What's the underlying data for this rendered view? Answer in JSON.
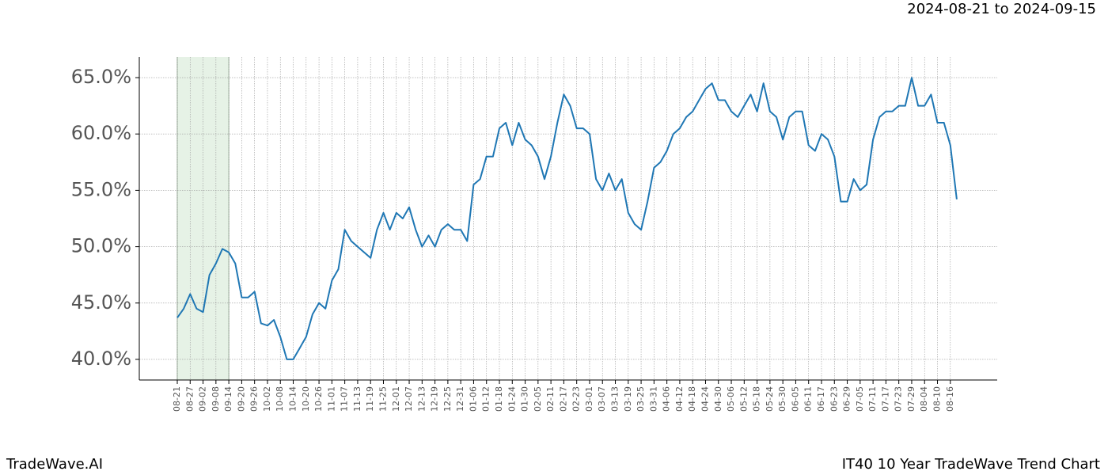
{
  "chart_data": {
    "type": "line",
    "title": "IT40 10 Year TradeWave Trend Chart",
    "subtitle": "2024-08-21 to 2024-09-15",
    "brand": "TradeWave.AI",
    "color": "#1f77b4",
    "highlight_color": "#e6f2e6",
    "highlight_range": [
      "08-21",
      "09-14"
    ],
    "grid": true,
    "x": [
      "08-21",
      "08-24",
      "08-27",
      "08-30",
      "09-02",
      "09-05",
      "09-08",
      "09-11",
      "09-14",
      "09-17",
      "09-20",
      "09-23",
      "09-26",
      "09-29",
      "10-02",
      "10-05",
      "10-08",
      "10-11",
      "10-14",
      "10-17",
      "10-20",
      "10-23",
      "10-26",
      "10-29",
      "11-01",
      "11-04",
      "11-07",
      "11-10",
      "11-13",
      "11-16",
      "11-19",
      "11-22",
      "11-25",
      "11-28",
      "12-01",
      "12-04",
      "12-07",
      "12-10",
      "12-13",
      "12-16",
      "12-19",
      "12-22",
      "12-25",
      "12-28",
      "12-31",
      "01-03",
      "01-06",
      "01-09",
      "01-12",
      "01-15",
      "01-18",
      "01-21",
      "01-24",
      "01-27",
      "01-30",
      "02-02",
      "02-05",
      "02-08",
      "02-11",
      "02-14",
      "02-17",
      "02-20",
      "02-23",
      "02-26",
      "03-01",
      "03-04",
      "03-07",
      "03-10",
      "03-13",
      "03-16",
      "03-19",
      "03-22",
      "03-25",
      "03-28",
      "03-31",
      "04-03",
      "04-06",
      "04-09",
      "04-12",
      "04-15",
      "04-18",
      "04-21",
      "04-24",
      "04-27",
      "04-30",
      "05-03",
      "05-06",
      "05-09",
      "05-12",
      "05-15",
      "05-18",
      "05-21",
      "05-24",
      "05-27",
      "05-30",
      "06-02",
      "06-05",
      "06-08",
      "06-11",
      "06-14",
      "06-17",
      "06-20",
      "06-23",
      "06-26",
      "06-29",
      "07-02",
      "07-05",
      "07-08",
      "07-11",
      "07-14",
      "07-17",
      "07-20",
      "07-23",
      "07-26",
      "07-29",
      "08-01",
      "08-04",
      "08-07",
      "08-10",
      "08-13",
      "08-16",
      "08-19"
    ],
    "values": [
      43.7,
      44.5,
      45.8,
      44.5,
      44.2,
      47.5,
      48.5,
      49.8,
      49.5,
      48.5,
      45.5,
      45.5,
      46,
      43.2,
      43,
      43.5,
      42,
      40,
      40,
      41,
      42,
      44,
      45,
      44.5,
      47,
      48,
      51.5,
      50.5,
      50,
      49.5,
      49,
      51.5,
      53,
      51.5,
      53,
      52.5,
      53.5,
      51.5,
      50,
      51,
      50,
      51.5,
      52,
      51.5,
      51.5,
      50.5,
      55.5,
      56,
      58,
      58,
      60.5,
      61,
      59,
      61,
      59.5,
      59,
      58,
      56,
      58,
      61,
      63.5,
      62.5,
      60.5,
      60.5,
      60,
      56,
      55,
      56.5,
      55,
      56,
      53,
      52,
      51.5,
      54,
      57,
      57.5,
      58.5,
      60,
      60.5,
      61.5,
      62,
      63,
      64,
      64.5,
      63,
      63,
      62,
      61.5,
      62.5,
      63.5,
      62,
      64.5,
      62,
      61.5,
      59.5,
      61.5,
      62,
      62,
      59,
      58.5,
      60,
      59.5,
      58,
      54,
      54,
      56,
      55,
      55.5,
      59.5,
      61.5,
      62,
      62,
      62.5,
      62.5,
      65,
      62.5,
      62.5,
      63.5,
      61,
      61,
      59,
      54.2
    ],
    "ylim": [
      38.17,
      66.83
    ],
    "yticks": [
      {
        "value": 40,
        "label": "40.0%"
      },
      {
        "value": 45,
        "label": "45.0%"
      },
      {
        "value": 50,
        "label": "50.0%"
      },
      {
        "value": 55,
        "label": "55.0%"
      },
      {
        "value": 60,
        "label": "60.0%"
      },
      {
        "value": 65,
        "label": "65.0%"
      }
    ]
  }
}
